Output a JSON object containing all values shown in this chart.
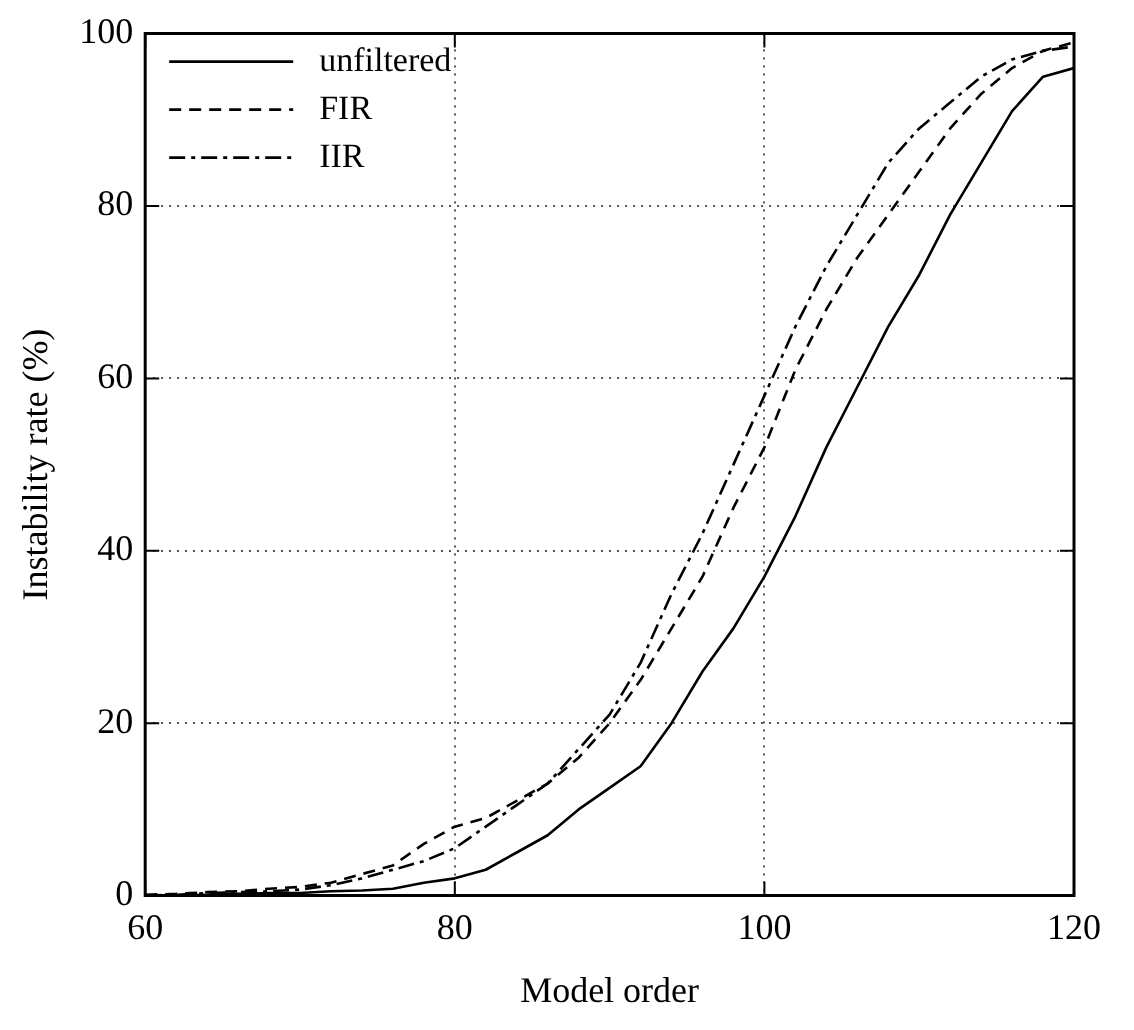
{
  "chart_data": {
    "type": "line",
    "xlabel": "Model order",
    "ylabel": "Instability rate (%)",
    "x": [
      60,
      62,
      64,
      66,
      68,
      70,
      72,
      74,
      76,
      78,
      80,
      82,
      84,
      86,
      88,
      90,
      92,
      94,
      96,
      98,
      100,
      102,
      104,
      106,
      108,
      110,
      112,
      114,
      116,
      118,
      120
    ],
    "series": [
      {
        "name": "unfiltered",
        "color": "#000000",
        "line_style": "solid",
        "values": [
          0,
          0,
          0.1,
          0.2,
          0.3,
          0.3,
          0.5,
          0.6,
          0.8,
          1.5,
          2,
          3,
          5,
          7,
          10,
          12.5,
          15,
          20,
          26,
          31,
          37,
          44,
          52,
          59,
          66,
          72,
          79,
          85,
          91,
          95,
          96
        ]
      },
      {
        "name": "FIR",
        "color": "#000000",
        "line_style": "dashed",
        "values": [
          0.1,
          0.2,
          0.4,
          0.5,
          0.8,
          1,
          1.5,
          2.5,
          3.5,
          6,
          8,
          9,
          11,
          13,
          16,
          20,
          25,
          31,
          37,
          45,
          52,
          61,
          68,
          74,
          79,
          84,
          89,
          93,
          96,
          98,
          99
        ]
      },
      {
        "name": "IIR",
        "color": "#000000",
        "line_style": "dashdot",
        "values": [
          0,
          0.1,
          0.3,
          0.4,
          0.5,
          0.7,
          1.2,
          2,
          3,
          4,
          5.5,
          8,
          10.5,
          13,
          17,
          21,
          27,
          35,
          42,
          50,
          58,
          66,
          73,
          79,
          85,
          89,
          92,
          95,
          97,
          98,
          98.5
        ]
      }
    ],
    "xlim": [
      60,
      120
    ],
    "xticks": [
      60,
      80,
      100,
      120
    ],
    "ylim": [
      0,
      100
    ],
    "yticks": [
      0,
      20,
      40,
      60,
      80,
      100
    ],
    "grid": true,
    "legend": "top left",
    "marker": "none"
  }
}
